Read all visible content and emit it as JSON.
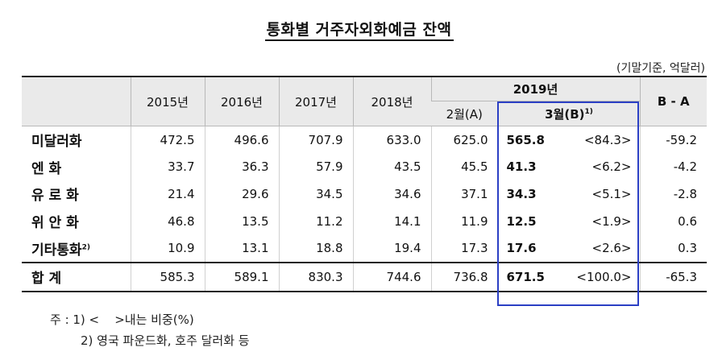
{
  "title": "통화별 거주자외화예금 잔액",
  "unit": "(기말기준, 억달러)",
  "header": {
    "years": [
      "2015년",
      "2016년",
      "2017년",
      "2018년"
    ],
    "year_2019": "2019년",
    "feb": "2월(A)",
    "mar": "3월(B)",
    "mar_sup": "1)",
    "diff": "B - A"
  },
  "rows": [
    {
      "label": "미달러화",
      "sup": "",
      "v2015": "472.5",
      "v2016": "496.6",
      "v2017": "707.9",
      "v2018": "633.0",
      "feb": "625.0",
      "mar": "565.8",
      "share": "<84.3>",
      "diff": "-59.2"
    },
    {
      "label": "엔 화",
      "sup": "",
      "v2015": "33.7",
      "v2016": "36.3",
      "v2017": "57.9",
      "v2018": "43.5",
      "feb": "45.5",
      "mar": "41.3",
      "share": "<6.2>",
      "diff": "-4.2"
    },
    {
      "label": "유 로 화",
      "sup": "",
      "v2015": "21.4",
      "v2016": "29.6",
      "v2017": "34.5",
      "v2018": "34.6",
      "feb": "37.1",
      "mar": "34.3",
      "share": "<5.1>",
      "diff": "-2.8"
    },
    {
      "label": "위 안 화",
      "sup": "",
      "v2015": "46.8",
      "v2016": "13.5",
      "v2017": "11.2",
      "v2018": "14.1",
      "feb": "11.9",
      "mar": "12.5",
      "share": "<1.9>",
      "diff": "0.6"
    },
    {
      "label": "기타통화",
      "sup": "2)",
      "v2015": "10.9",
      "v2016": "13.1",
      "v2017": "18.8",
      "v2018": "19.4",
      "feb": "17.3",
      "mar": "17.6",
      "share": "<2.6>",
      "diff": "0.3"
    }
  ],
  "total": {
    "label": "합 계",
    "v2015": "585.3",
    "v2016": "589.1",
    "v2017": "830.3",
    "v2018": "744.6",
    "feb": "736.8",
    "mar": "671.5",
    "share": "<100.0>",
    "diff": "-65.3"
  },
  "notes": {
    "n1": "주 : 1) <    >내는 비중(%)",
    "n2": "2) 영국 파운드화, 호주 달러화 등"
  },
  "colors": {
    "highlight_border": "#2b3fc4",
    "header_bg": "#eaeaea"
  }
}
